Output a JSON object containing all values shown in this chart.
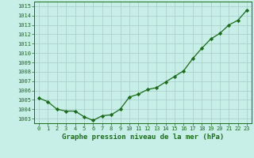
{
  "x": [
    0,
    1,
    2,
    3,
    4,
    5,
    6,
    7,
    8,
    9,
    10,
    11,
    12,
    13,
    14,
    15,
    16,
    17,
    18,
    19,
    20,
    21,
    22,
    23
  ],
  "y": [
    1005.2,
    1004.8,
    1004.0,
    1003.8,
    1003.8,
    1003.2,
    1002.8,
    1003.3,
    1003.4,
    1004.0,
    1005.3,
    1005.6,
    1006.1,
    1006.3,
    1006.9,
    1007.5,
    1008.1,
    1009.4,
    1010.5,
    1011.5,
    1012.1,
    1013.0,
    1013.5,
    1014.6
  ],
  "line_color": "#1a6b1a",
  "marker": "D",
  "marker_size": 2.2,
  "linewidth": 0.9,
  "bg_color": "#c8eee8",
  "grid_color": "#a8ccc8",
  "xlabel": "Graphe pression niveau de la mer (hPa)",
  "xlabel_color": "#1a6b1a",
  "tick_color": "#1a6b1a",
  "ylim": [
    1002.5,
    1015.5
  ],
  "yticks": [
    1003,
    1004,
    1005,
    1006,
    1007,
    1008,
    1009,
    1010,
    1011,
    1012,
    1013,
    1014,
    1015
  ],
  "xlim": [
    -0.5,
    23.5
  ],
  "xticks": [
    0,
    1,
    2,
    3,
    4,
    5,
    6,
    7,
    8,
    9,
    10,
    11,
    12,
    13,
    14,
    15,
    16,
    17,
    18,
    19,
    20,
    21,
    22,
    23
  ],
  "border_color": "#1a6b1a",
  "tick_fontsize": 5.0,
  "xlabel_fontsize": 6.5
}
